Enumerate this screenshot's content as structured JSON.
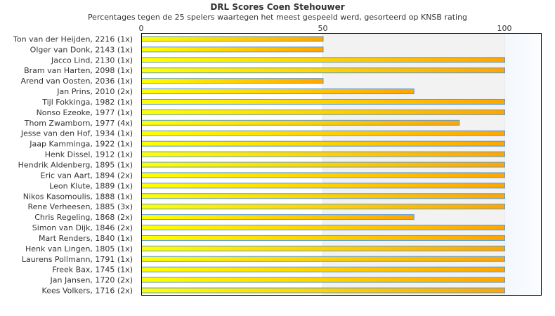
{
  "chart_data": {
    "type": "bar",
    "orientation": "horizontal",
    "title": "DRL Scores Coen Stehouwer",
    "subtitle": "Percentages tegen de 25 spelers waartegen het meest gespeeld werd, gesorteerd op KNSB rating",
    "xlim": [
      0,
      110
    ],
    "xticks": [
      "0",
      "50",
      "100"
    ],
    "tick_values": [
      0,
      50,
      100
    ],
    "categories": [
      "Ton van der Heijden, 2216 (1x)",
      "Olger van Donk, 2143 (1x)",
      "Jacco Lind, 2130 (1x)",
      "Bram van Harten, 2098 (1x)",
      "Arend van Oosten, 2036 (1x)",
      "Jan Prins, 2010 (2x)",
      "Tijl Fokkinga, 1982 (1x)",
      "Nonso Ezeoke, 1977 (1x)",
      "Thom Zwamborn, 1977 (4x)",
      "Jesse van den Hof, 1934 (1x)",
      "Jaap Kamminga, 1922 (1x)",
      "Henk Dissel, 1912 (1x)",
      "Hendrik Aldenberg, 1895 (1x)",
      "Eric van Aart, 1894 (2x)",
      "Leon Klute, 1889 (1x)",
      "Nikos Kasomoulis, 1888 (1x)",
      "Rene Verheesen, 1885 (3x)",
      "Chris Regeling, 1868 (2x)",
      "Simon van Dijk, 1846 (2x)",
      "Mart Renders, 1840 (1x)",
      "Henk van Lingen, 1805 (1x)",
      "Laurens Pollmann, 1791 (1x)",
      "Freek Bax, 1745 (1x)",
      "Jan Jansen, 1720 (2x)",
      "Kees Volkers, 1716 (2x)"
    ],
    "values": [
      50,
      50,
      100,
      100,
      50,
      75,
      100,
      100,
      87.5,
      100,
      100,
      100,
      100,
      100,
      100,
      100,
      100,
      75,
      100,
      100,
      100,
      100,
      100,
      100,
      100
    ],
    "colors": {
      "bar_start": "#ffff00",
      "bar_end": "#ffa500",
      "bar_border": "#5b9bd5",
      "band_mid": "#f2f2f2",
      "band_high": "#f5f9fd"
    }
  }
}
